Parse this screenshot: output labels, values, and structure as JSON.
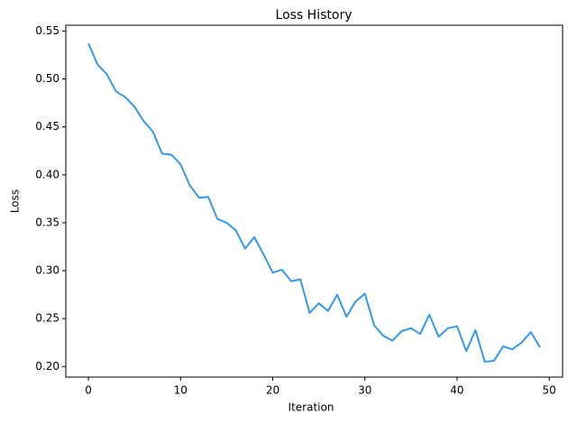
{
  "chart_data": {
    "type": "line",
    "title": "Loss History",
    "x_label": "Iteration",
    "y_label": "Loss",
    "x": [
      0,
      1,
      2,
      3,
      4,
      5,
      6,
      7,
      8,
      9,
      10,
      11,
      12,
      13,
      14,
      15,
      16,
      17,
      18,
      19,
      20,
      21,
      22,
      23,
      24,
      25,
      26,
      27,
      28,
      29,
      30,
      31,
      32,
      33,
      34,
      35,
      36,
      37,
      38,
      39,
      40,
      41,
      42,
      43,
      44,
      45,
      46,
      47,
      48,
      49
    ],
    "series": [
      {
        "name": "Loss",
        "color": "#3498eb",
        "values": [
          0.537,
          0.515,
          0.505,
          0.487,
          0.481,
          0.471,
          0.456,
          0.445,
          0.422,
          0.421,
          0.411,
          0.389,
          0.376,
          0.377,
          0.354,
          0.35,
          0.342,
          0.323,
          0.335,
          0.317,
          0.298,
          0.301,
          0.289,
          0.291,
          0.256,
          0.266,
          0.258,
          0.275,
          0.252,
          0.268,
          0.276,
          0.243,
          0.232,
          0.227,
          0.237,
          0.24,
          0.234,
          0.254,
          0.231,
          0.24,
          0.242,
          0.216,
          0.238,
          0.205,
          0.206,
          0.221,
          0.218,
          0.225,
          0.236,
          0.22
        ]
      }
    ],
    "xlim": [
      -2.45,
      51.45
    ],
    "xticks": [
      0,
      10,
      20,
      30,
      40,
      50
    ],
    "ylim": [
      0.189,
      0.556
    ],
    "yticks": [
      {
        "value": 0.2,
        "label": "0.20"
      },
      0.25,
      {
        "value": 0.3,
        "label": "0.30"
      },
      0.35,
      {
        "value": 0.4,
        "label": "0.40"
      },
      0.45,
      {
        "value": 0.5,
        "label": "0.50"
      },
      0.55
    ]
  }
}
